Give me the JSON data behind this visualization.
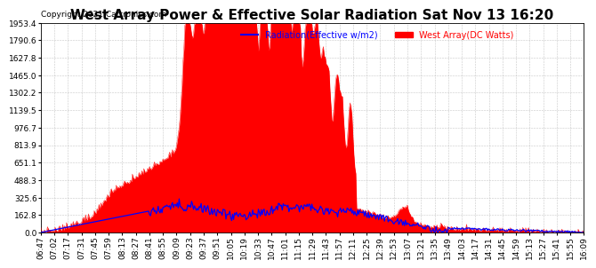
{
  "title": "West Array Power & Effective Solar Radiation Sat Nov 13 16:20",
  "copyright": "Copyright 2021 Cartronics.com",
  "legend_radiation": "Radiation(Effective w/m2)",
  "legend_west": "West Array(DC Watts)",
  "radiation_color": "blue",
  "west_color": "red",
  "background_color": "#ffffff",
  "grid_color": "#b0b0b0",
  "ylim": [
    0.0,
    1953.4
  ],
  "yticks": [
    0.0,
    162.8,
    325.6,
    488.3,
    651.1,
    813.9,
    976.7,
    1139.5,
    1302.2,
    1465.0,
    1627.8,
    1790.6,
    1953.4
  ],
  "title_fontsize": 11,
  "tick_fontsize": 6.5,
  "time_labels": [
    "06:47",
    "07:02",
    "07:17",
    "07:31",
    "07:45",
    "07:59",
    "08:13",
    "08:27",
    "08:41",
    "08:55",
    "09:09",
    "09:23",
    "09:37",
    "09:51",
    "10:05",
    "10:19",
    "10:33",
    "10:47",
    "11:01",
    "11:15",
    "11:29",
    "11:43",
    "11:57",
    "12:11",
    "12:25",
    "12:39",
    "12:53",
    "13:07",
    "13:21",
    "13:35",
    "13:49",
    "14:03",
    "14:17",
    "14:31",
    "14:45",
    "14:59",
    "15:13",
    "15:27",
    "15:41",
    "15:55",
    "16:09"
  ]
}
